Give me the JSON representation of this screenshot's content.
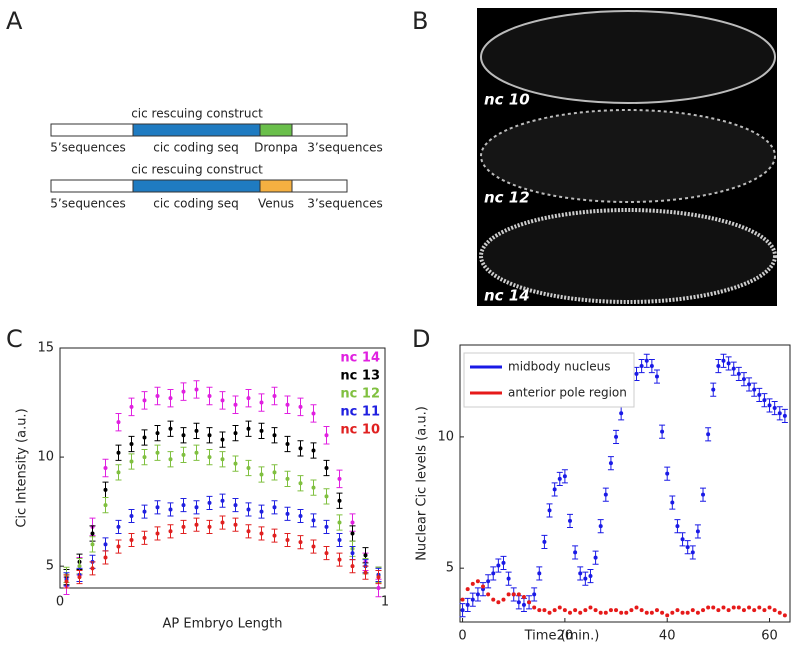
{
  "panel_letters": [
    "A",
    "B",
    "C",
    "D"
  ],
  "diagram": {
    "constructs": [
      {
        "title": "cic rescuing construct",
        "left": "5’sequences",
        "coding": "cic coding seq",
        "tag": "Dronpa",
        "right": "3’sequences",
        "tag_color": "#6abf4b"
      },
      {
        "title": "cic rescuing construct",
        "left": "5’sequences",
        "coding": "cic coding seq",
        "tag": "Venus",
        "right": "3’sequences",
        "tag_color": "#f5b041"
      }
    ]
  },
  "image": {
    "labels": [
      "nc 10",
      "nc 12",
      "nc 14"
    ]
  },
  "chart_data": [
    {
      "type": "scatter",
      "xlabel": "AP Embryo Length",
      "ylabel": "Cic Intensity (a.u.)",
      "xlim": [
        0,
        1
      ],
      "ylim": [
        4,
        15
      ],
      "xticks": [
        0,
        1
      ],
      "yticks": [
        5,
        10,
        15
      ],
      "legend": "upper right",
      "x": [
        0.02,
        0.06,
        0.1,
        0.14,
        0.18,
        0.22,
        0.26,
        0.3,
        0.34,
        0.38,
        0.42,
        0.46,
        0.5,
        0.54,
        0.58,
        0.62,
        0.66,
        0.7,
        0.74,
        0.78,
        0.82,
        0.86,
        0.9,
        0.94,
        0.98
      ],
      "series": [
        {
          "name": "nc 14",
          "color": "#e020e0",
          "error": 0.4,
          "values": [
            4.1,
            5.0,
            6.8,
            9.5,
            11.6,
            12.3,
            12.6,
            12.8,
            12.7,
            13.0,
            13.1,
            12.8,
            12.6,
            12.4,
            12.7,
            12.5,
            12.8,
            12.4,
            12.3,
            12.0,
            11.0,
            9.0,
            7.0,
            5.2,
            4.0
          ]
        },
        {
          "name": "nc 13",
          "color": "#000000",
          "error": 0.35,
          "values": [
            4.5,
            5.2,
            6.5,
            8.5,
            10.2,
            10.6,
            10.9,
            11.1,
            11.3,
            11.0,
            11.2,
            11.0,
            10.8,
            11.1,
            11.3,
            11.2,
            11.0,
            10.6,
            10.4,
            10.3,
            9.5,
            8.0,
            6.5,
            5.5,
            4.6
          ]
        },
        {
          "name": "nc 12",
          "color": "#80c040",
          "error": 0.35,
          "values": [
            4.6,
            5.0,
            6.0,
            7.8,
            9.3,
            9.8,
            10.0,
            10.2,
            9.9,
            10.1,
            10.2,
            10.0,
            9.9,
            9.7,
            9.5,
            9.2,
            9.3,
            9.0,
            8.8,
            8.6,
            8.2,
            7.0,
            5.8,
            5.0,
            4.6
          ]
        },
        {
          "name": "nc 11",
          "color": "#2020e0",
          "error": 0.3,
          "values": [
            4.4,
            4.6,
            5.2,
            6.0,
            6.8,
            7.3,
            7.5,
            7.7,
            7.6,
            7.8,
            7.7,
            7.9,
            8.0,
            7.8,
            7.6,
            7.5,
            7.7,
            7.4,
            7.3,
            7.1,
            6.8,
            6.2,
            5.6,
            5.0,
            4.6
          ]
        },
        {
          "name": "nc 10",
          "color": "#e02020",
          "error": 0.3,
          "values": [
            4.3,
            4.5,
            4.9,
            5.4,
            5.9,
            6.2,
            6.3,
            6.5,
            6.6,
            6.8,
            6.9,
            6.8,
            7.0,
            6.9,
            6.6,
            6.5,
            6.4,
            6.2,
            6.1,
            5.9,
            5.6,
            5.3,
            5.0,
            4.7,
            4.5
          ]
        }
      ]
    },
    {
      "type": "scatter",
      "xlabel": "Time (min.)",
      "ylabel": "Nuclear Cic levels  (a.u.)",
      "xlim": [
        -0.5,
        64
      ],
      "ylim": [
        2.95,
        13.5
      ],
      "xticks": [
        0,
        20,
        40,
        60
      ],
      "yticks": [
        5,
        10
      ],
      "legend": "upper left",
      "x": [
        0,
        1,
        2,
        3,
        4,
        5,
        6,
        7,
        8,
        9,
        10,
        11,
        12,
        13,
        14,
        15,
        16,
        17,
        18,
        19,
        20,
        21,
        22,
        23,
        24,
        25,
        26,
        27,
        28,
        29,
        30,
        31,
        32,
        33,
        34,
        35,
        36,
        37,
        38,
        39,
        40,
        41,
        42,
        43,
        44,
        45,
        46,
        47,
        48,
        49,
        50,
        51,
        52,
        53,
        54,
        55,
        56,
        57,
        58,
        59,
        60,
        61,
        62,
        63
      ],
      "series": [
        {
          "name": "midbody nucleus",
          "color": "#1a1ae6",
          "error": 0.25,
          "values": [
            3.4,
            3.6,
            3.8,
            4.0,
            4.2,
            4.5,
            4.8,
            5.1,
            5.2,
            4.6,
            4.0,
            3.7,
            3.6,
            3.7,
            4.0,
            4.8,
            6.0,
            7.2,
            8.0,
            8.4,
            8.5,
            6.8,
            5.6,
            4.8,
            4.6,
            4.7,
            5.4,
            6.6,
            7.8,
            9.0,
            10.0,
            10.9,
            11.5,
            12.0,
            12.4,
            12.7,
            12.9,
            12.7,
            12.3,
            10.2,
            8.6,
            7.5,
            6.6,
            6.1,
            5.8,
            5.6,
            6.4,
            7.8,
            10.1,
            11.8,
            12.7,
            12.9,
            12.8,
            12.6,
            12.4,
            12.2,
            12.0,
            11.8,
            11.6,
            11.4,
            11.2,
            11.1,
            10.9,
            10.8
          ]
        },
        {
          "name": "anterior pole region",
          "color": "#e61a1a",
          "values": [
            3.8,
            4.2,
            4.4,
            4.5,
            4.3,
            4.0,
            3.8,
            3.7,
            3.8,
            4.0,
            4.0,
            4.0,
            3.9,
            3.7,
            3.5,
            3.4,
            3.4,
            3.3,
            3.4,
            3.5,
            3.4,
            3.3,
            3.4,
            3.3,
            3.4,
            3.5,
            3.4,
            3.3,
            3.3,
            3.4,
            3.4,
            3.3,
            3.3,
            3.4,
            3.5,
            3.4,
            3.3,
            3.3,
            3.4,
            3.3,
            3.2,
            3.3,
            3.4,
            3.3,
            3.3,
            3.4,
            3.3,
            3.4,
            3.5,
            3.5,
            3.4,
            3.5,
            3.4,
            3.5,
            3.5,
            3.4,
            3.5,
            3.4,
            3.5,
            3.4,
            3.5,
            3.4,
            3.3,
            3.2
          ]
        }
      ]
    }
  ]
}
